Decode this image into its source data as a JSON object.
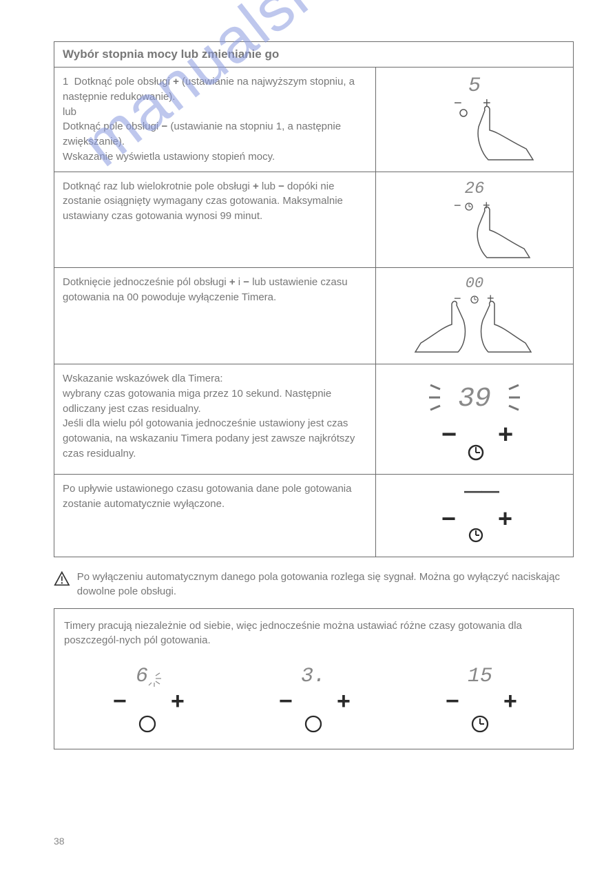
{
  "table": {
    "title": "Wybór stopnia mocy lub zmienianie go",
    "rows": [
      {
        "text_html": "<span class='step-num'>1</span>&nbsp;&nbsp;Dotknąć pole obsługi <b>+</b> (ustawianie na najwyższym stopniu, a następnie redukowanie).<br>lub<br>Dotknąć pole obsługi <b>−</b> (ustawianie na stopniu 1, a następnie zwiększanie).<br>Wskazanie wyświetla ustawiony stopień mocy.",
        "illus": {
          "display": "5",
          "type": "hand-plus-small"
        }
      },
      {
        "text_html": "Dotknąć raz lub wielokrotnie pole obsługi <b>+</b> lub <b>−</b> dopóki nie zostanie osiągnięty wymagany czas gotowania. Maksymalnie ustawiany czas gotowania wynosi 99 minut.",
        "illus": {
          "display": "26",
          "type": "hand-plus-clock"
        }
      },
      {
        "text_html": "Dotknięcie jednocześnie pól obsługi <b>+</b> i <b>−</b> lub ustawienie czasu gotowania na 00 powoduje wyłączenie Timera.",
        "illus": {
          "display": "00",
          "type": "two-hands-clock"
        }
      },
      {
        "text_html": "Wskazanie wskazówek dla Timera:<br>wybrany czas gotowania miga przez 10 sekund. Następnie odliczany jest czas residualny.<br>Jeśli dla wielu pól gotowania jednocześnie ustawiony jest czas gotowania, na wskazaniu Timera podany jest zawsze najkrótszy czas residualny.",
        "illus": {
          "display": "39",
          "type": "flash-clock"
        }
      },
      {
        "text_html": "Po upływie ustawionego czasu gotowania dane pole gotowania zostanie automatycznie wyłączone.",
        "illus": {
          "display": "— —",
          "type": "dashes-clock"
        }
      }
    ]
  },
  "warning": {
    "text": "Po wyłączeniu automatycznym danego pola gotowania rozlega się sygnał. Można go wyłączyć naciskając dowolne pole obsługi."
  },
  "box2": {
    "lead": "Timery pracują niezależnie od siebie, więc jednocześnie można ustawiać różne czasy gotowania dla poszczegól-nych pól gotowania.",
    "panels": [
      {
        "display": "6",
        "sub": "burst",
        "indicator": "circle"
      },
      {
        "display": "3.",
        "sub": "",
        "indicator": "circle"
      },
      {
        "display": "15",
        "sub": "",
        "indicator": "clock"
      }
    ]
  },
  "page_number": "38",
  "watermark": "manualshive.com",
  "colors": {
    "border": "#6b6b6b",
    "text": "#777777",
    "seg": "#888888",
    "watermark": "#8a9be0"
  }
}
